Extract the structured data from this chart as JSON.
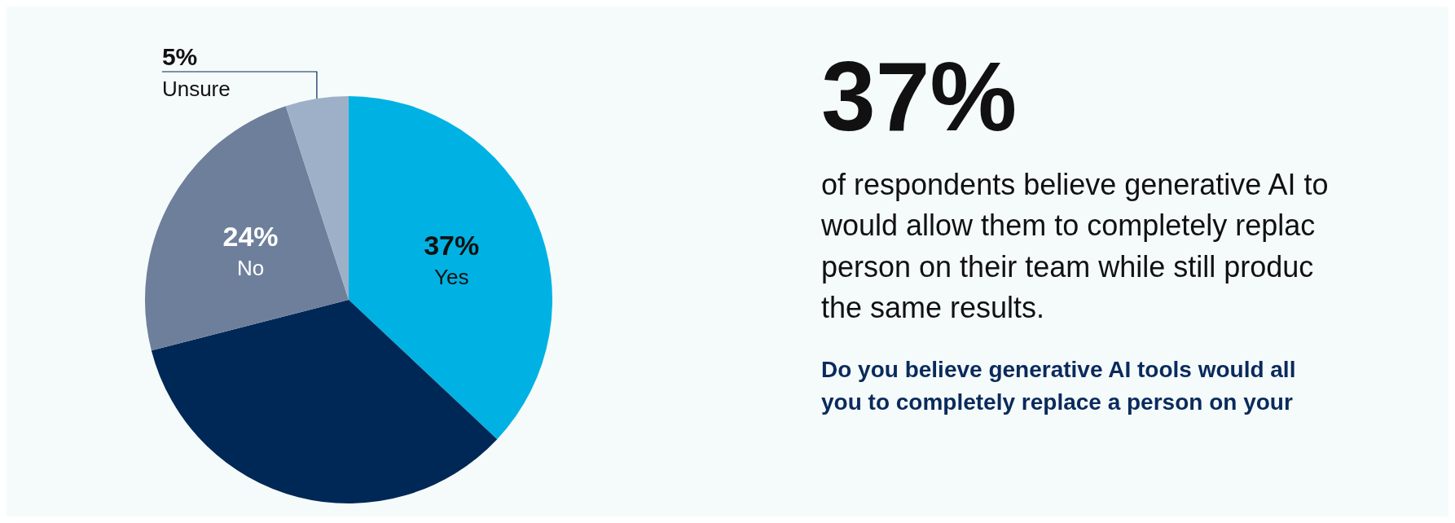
{
  "chart_data": {
    "type": "pie",
    "title": "37%",
    "subtitle": "of respondents believe generative AI to\nwould allow them to completely replac\nperson on their team while still produc\nthe same results.",
    "annotations": [
      "Do you believe generative AI tools would all\nyou to completely replace a person on your"
    ],
    "categories": [
      "Yes",
      null,
      "No",
      "Unsure"
    ],
    "values": [
      37,
      34,
      24,
      5
    ],
    "colors": [
      "#00b2e3",
      "#002856",
      "#6e7f9b",
      "#9eb0c8"
    ],
    "value_labels": [
      "37%",
      null,
      "24%",
      "5%"
    ],
    "legend": false
  }
}
